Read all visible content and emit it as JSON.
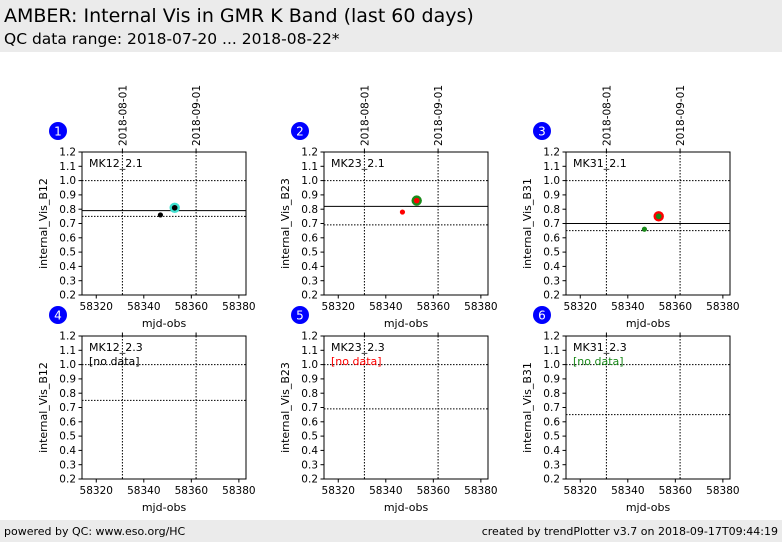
{
  "header": {
    "title": "AMBER: Internal Vis in GMR K Band (last 60 days)",
    "subtitle": "QC data range: 2018-07-20 ... 2018-08-22*"
  },
  "footer": {
    "left": "powered by QC: www.eso.org/HC",
    "right": "created by trendPlotter v3.7 on 2018-09-17T09:44:19"
  },
  "colors": {
    "badge": "#0000ff",
    "grid": "#000000"
  },
  "chart_data": [
    {
      "type": "scatter",
      "panel": "1",
      "label": "MK12_2.1",
      "status_text": "",
      "status_color": "",
      "xlabel": "mjd-obs",
      "ylabel": "internal_Vis_B12",
      "xlim": [
        58314,
        58383
      ],
      "ylim": [
        0.2,
        1.2
      ],
      "xticks": [
        58320,
        58340,
        58360,
        58380
      ],
      "yticks": [
        0.2,
        0.3,
        0.4,
        0.5,
        0.6,
        0.7,
        0.8,
        0.9,
        1.0,
        1.1,
        1.2
      ],
      "date_ticks": [
        {
          "label": "2018-08-01",
          "mjd": 58331
        },
        {
          "label": "2018-09-01",
          "mjd": 58362
        }
      ],
      "hlines": [
        {
          "y": 1.0,
          "style": "dotted"
        },
        {
          "y": 0.79,
          "style": "solid"
        },
        {
          "y": 0.75,
          "style": "dotted"
        }
      ],
      "points": [
        {
          "x": 58347,
          "y": 0.76,
          "color": "#000000",
          "size": "small"
        },
        {
          "x": 58353,
          "y": 0.81,
          "color": "#000000",
          "ring": "#40e0d0",
          "size": "large"
        }
      ]
    },
    {
      "type": "scatter",
      "panel": "2",
      "label": "MK23_2.1",
      "status_text": "",
      "status_color": "",
      "xlabel": "mjd-obs",
      "ylabel": "internal_Vis_B23",
      "xlim": [
        58314,
        58383
      ],
      "ylim": [
        0.2,
        1.2
      ],
      "xticks": [
        58320,
        58340,
        58360,
        58380
      ],
      "yticks": [
        0.2,
        0.3,
        0.4,
        0.5,
        0.6,
        0.7,
        0.8,
        0.9,
        1.0,
        1.1,
        1.2
      ],
      "date_ticks": [
        {
          "label": "2018-08-01",
          "mjd": 58331
        },
        {
          "label": "2018-09-01",
          "mjd": 58362
        }
      ],
      "hlines": [
        {
          "y": 1.0,
          "style": "dotted"
        },
        {
          "y": 0.82,
          "style": "solid"
        },
        {
          "y": 0.69,
          "style": "dotted"
        }
      ],
      "points": [
        {
          "x": 58347,
          "y": 0.78,
          "color": "#ff0000",
          "size": "small"
        },
        {
          "x": 58353,
          "y": 0.86,
          "color": "#ff0000",
          "ring": "#1a8a1a",
          "size": "large"
        }
      ]
    },
    {
      "type": "scatter",
      "panel": "3",
      "label": "MK31_2.1",
      "status_text": "",
      "status_color": "",
      "xlabel": "mjd-obs",
      "ylabel": "internal_Vis_B31",
      "xlim": [
        58314,
        58383
      ],
      "ylim": [
        0.2,
        1.2
      ],
      "xticks": [
        58320,
        58340,
        58360,
        58380
      ],
      "yticks": [
        0.2,
        0.3,
        0.4,
        0.5,
        0.6,
        0.7,
        0.8,
        0.9,
        1.0,
        1.1,
        1.2
      ],
      "date_ticks": [
        {
          "label": "2018-08-01",
          "mjd": 58331
        },
        {
          "label": "2018-09-01",
          "mjd": 58362
        }
      ],
      "hlines": [
        {
          "y": 1.0,
          "style": "dotted"
        },
        {
          "y": 0.7,
          "style": "solid"
        },
        {
          "y": 0.65,
          "style": "dotted"
        }
      ],
      "points": [
        {
          "x": 58347,
          "y": 0.66,
          "color": "#1a8a1a",
          "size": "small"
        },
        {
          "x": 58353,
          "y": 0.75,
          "color": "#1a8a1a",
          "ring": "#ff0000",
          "size": "large"
        }
      ]
    },
    {
      "type": "scatter",
      "panel": "4",
      "label": "MK12_2.3",
      "status_text": "[no data]",
      "status_color": "#000000",
      "xlabel": "mjd-obs",
      "ylabel": "internal_Vis_B12",
      "xlim": [
        58314,
        58383
      ],
      "ylim": [
        0.2,
        1.2
      ],
      "xticks": [
        58320,
        58340,
        58360,
        58380
      ],
      "yticks": [
        0.2,
        0.3,
        0.4,
        0.5,
        0.6,
        0.7,
        0.8,
        0.9,
        1.0,
        1.1,
        1.2
      ],
      "date_ticks": [
        {
          "label": "",
          "mjd": 58331
        },
        {
          "label": "",
          "mjd": 58362
        }
      ],
      "hlines": [
        {
          "y": 1.0,
          "style": "dotted"
        },
        {
          "y": 0.75,
          "style": "dotted"
        }
      ],
      "points": []
    },
    {
      "type": "scatter",
      "panel": "5",
      "label": "MK23_2.3",
      "status_text": "[no data]",
      "status_color": "#ff0000",
      "xlabel": "mjd-obs",
      "ylabel": "internal_Vis_B23",
      "xlim": [
        58314,
        58383
      ],
      "ylim": [
        0.2,
        1.2
      ],
      "xticks": [
        58320,
        58340,
        58360,
        58380
      ],
      "yticks": [
        0.2,
        0.3,
        0.4,
        0.5,
        0.6,
        0.7,
        0.8,
        0.9,
        1.0,
        1.1,
        1.2
      ],
      "date_ticks": [
        {
          "label": "",
          "mjd": 58331
        },
        {
          "label": "",
          "mjd": 58362
        }
      ],
      "hlines": [
        {
          "y": 1.0,
          "style": "dotted"
        },
        {
          "y": 0.69,
          "style": "dotted"
        }
      ],
      "points": []
    },
    {
      "type": "scatter",
      "panel": "6",
      "label": "MK31_2.3",
      "status_text": "[no data]",
      "status_color": "#1a8a1a",
      "xlabel": "mjd-obs",
      "ylabel": "internal_Vis_B31",
      "xlim": [
        58314,
        58383
      ],
      "ylim": [
        0.2,
        1.2
      ],
      "xticks": [
        58320,
        58340,
        58360,
        58380
      ],
      "yticks": [
        0.2,
        0.3,
        0.4,
        0.5,
        0.6,
        0.7,
        0.8,
        0.9,
        1.0,
        1.1,
        1.2
      ],
      "date_ticks": [
        {
          "label": "",
          "mjd": 58331
        },
        {
          "label": "",
          "mjd": 58362
        }
      ],
      "hlines": [
        {
          "y": 1.0,
          "style": "dotted"
        },
        {
          "y": 0.65,
          "style": "dotted"
        }
      ],
      "points": []
    }
  ]
}
